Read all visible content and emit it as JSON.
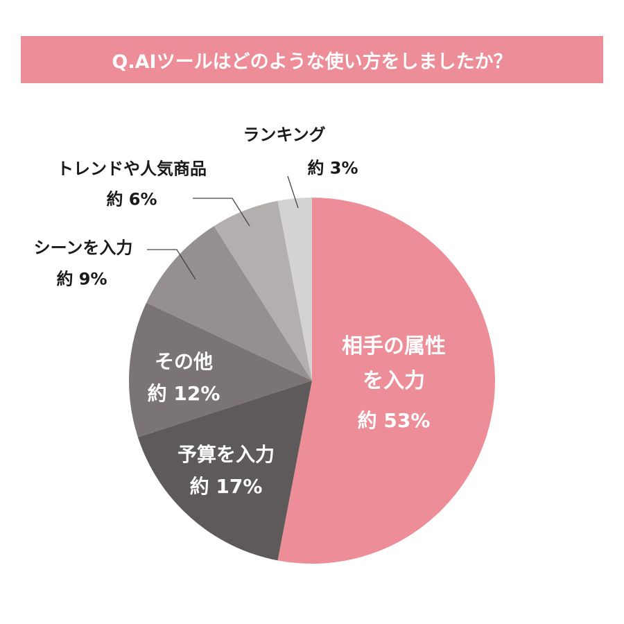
{
  "chart_data": {
    "type": "pie",
    "title": "Q.AIツールはどのような使い方をしましたか？",
    "categories": [
      "相手の属性を入力",
      "予算を入力",
      "その他",
      "シーンを入力",
      "トレンドや人気商品",
      "ランキング"
    ],
    "values": [
      53,
      17,
      12,
      9,
      6,
      3
    ],
    "value_labels": [
      "約 53%",
      "約 17%",
      "約 12%",
      "約 9%",
      "約 6%",
      "約 3%"
    ],
    "colors": [
      "#ec8d98",
      "#5f5a5a",
      "#7a7474",
      "#958f8f",
      "#b3afaf",
      "#d5d2d3"
    ]
  }
}
